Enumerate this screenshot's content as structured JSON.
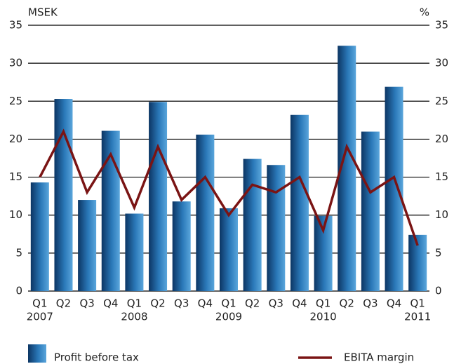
{
  "chart_data": {
    "type": "bar-line",
    "y_label": "MSEK",
    "y2_label": "%",
    "categories": [
      "Q1",
      "Q2",
      "Q3",
      "Q4",
      "Q1",
      "Q2",
      "Q3",
      "Q4",
      "Q1",
      "Q2",
      "Q3",
      "Q4",
      "Q1",
      "Q2",
      "Q3",
      "Q4",
      "Q1"
    ],
    "years": [
      "2007",
      null,
      null,
      null,
      "2008",
      null,
      null,
      null,
      "2009",
      null,
      null,
      null,
      "2010",
      null,
      null,
      null,
      "2011"
    ],
    "series": [
      {
        "name": "Profit before tax",
        "type": "bar",
        "color": "#2a78b8",
        "values": [
          14.3,
          25.3,
          12.0,
          21.1,
          10.2,
          24.9,
          11.8,
          20.6,
          10.9,
          17.4,
          16.6,
          23.2,
          9.9,
          32.3,
          21.0,
          26.9,
          7.4
        ]
      },
      {
        "name": "EBITA margin",
        "type": "line",
        "axis": "y2",
        "color": "#7a1414",
        "values": [
          15,
          21,
          13,
          18,
          11,
          19,
          12,
          15,
          10,
          14,
          13,
          15,
          8,
          19,
          13,
          15,
          6
        ]
      }
    ],
    "ylim": [
      0,
      35
    ],
    "yticks": [
      0,
      5,
      10,
      15,
      20,
      25,
      30,
      35
    ],
    "y2lim": [
      0,
      35
    ],
    "y2ticks": [
      0,
      5,
      10,
      15,
      20,
      25,
      30,
      35
    ],
    "grid": true
  }
}
